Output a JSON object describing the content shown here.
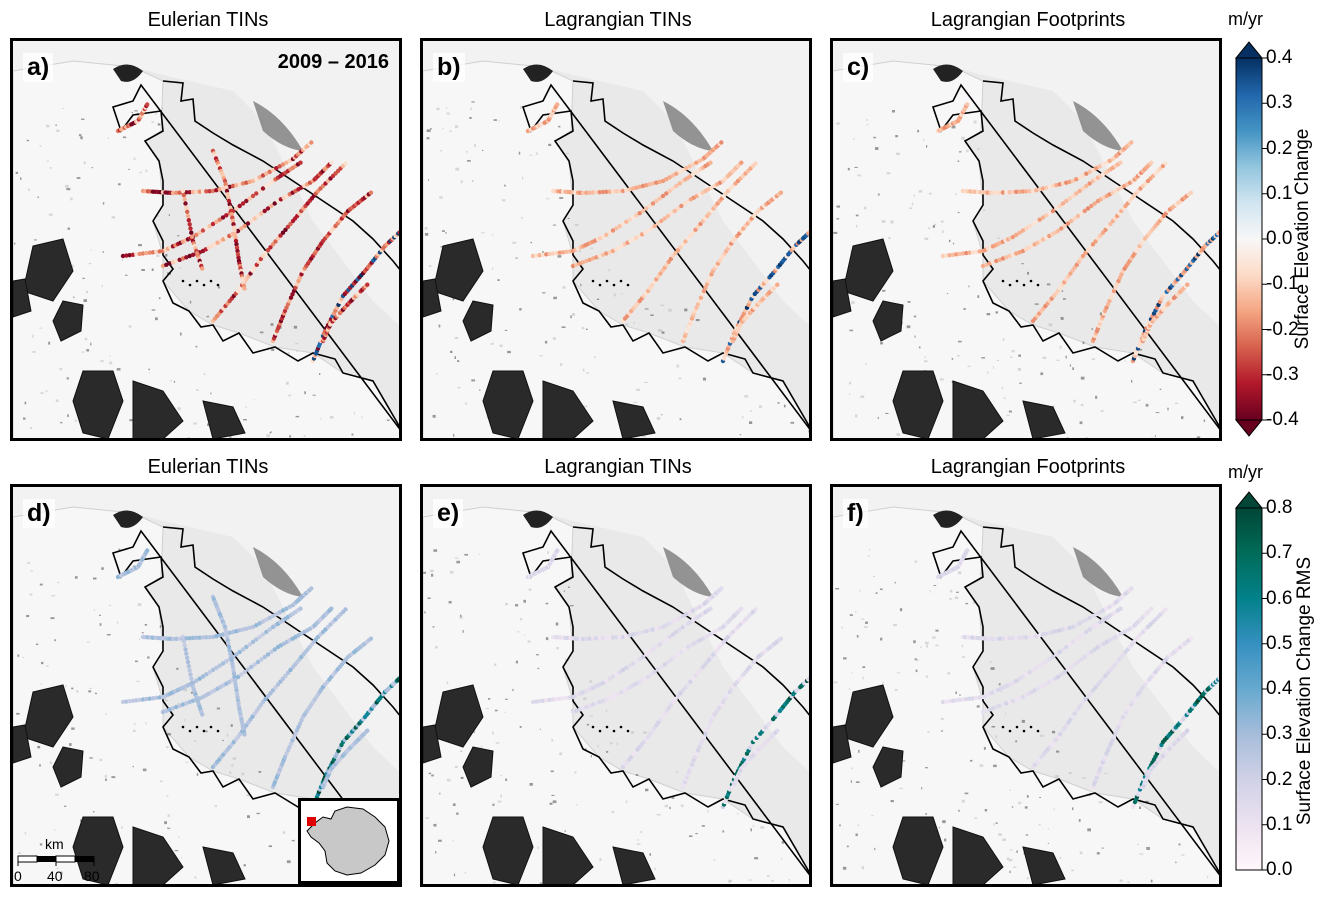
{
  "panels": [
    {
      "letter": "a)",
      "title": "Eulerian TINs",
      "period": "2009 – 2016",
      "metric": "change",
      "method": "eulerian_tins"
    },
    {
      "letter": "b)",
      "title": "Lagrangian TINs",
      "period": "",
      "metric": "change",
      "method": "lagrangian_tins"
    },
    {
      "letter": "c)",
      "title": "Lagrangian Footprints",
      "period": "",
      "metric": "change",
      "method": "lagrangian_footprints"
    },
    {
      "letter": "d)",
      "title": "Eulerian TINs",
      "period": "",
      "metric": "rms",
      "method": "eulerian_tins"
    },
    {
      "letter": "e)",
      "title": "Lagrangian TINs",
      "period": "",
      "metric": "rms",
      "method": "lagrangian_tins"
    },
    {
      "letter": "f)",
      "title": "Lagrangian Footprints",
      "period": "",
      "metric": "rms",
      "method": "lagrangian_footprints"
    }
  ],
  "colorbars": {
    "change": {
      "unit": "m/yr",
      "label": "Surface Elevation Change",
      "ticks": [
        "0.4",
        "0.3",
        "0.2",
        "0.1",
        "0.0",
        "-0.1",
        "-0.2",
        "-0.3",
        "-0.4"
      ],
      "range": [
        -0.4,
        0.4
      ],
      "colors": [
        "#67001f",
        "#b2182b",
        "#d6604d",
        "#f4a582",
        "#fddbc7",
        "#f7f7f7",
        "#d1e5f0",
        "#92c5de",
        "#4393c3",
        "#2166ac",
        "#053061"
      ]
    },
    "rms": {
      "unit": "m/yr",
      "label": "Surface Elevation Change RMS",
      "ticks": [
        "0.8",
        "0.7",
        "0.6",
        "0.5",
        "0.4",
        "0.3",
        "0.2",
        "0.1",
        "0.0"
      ],
      "range": [
        0.0,
        0.8
      ],
      "colors": [
        "#fff7fb",
        "#ece2f0",
        "#d0d1e6",
        "#a6bddb",
        "#67a9cf",
        "#3690c0",
        "#02818a",
        "#016c59",
        "#014636"
      ]
    }
  },
  "scalebar": {
    "unit": "km",
    "ticks": [
      "0",
      "40",
      "80"
    ]
  },
  "chart_data": {
    "type": "map",
    "title": "",
    "period": "2009 – 2016",
    "panels": [
      {
        "letter": "a)",
        "title": "Eulerian TINs",
        "variable": "Surface Elevation Change",
        "unit": "m/yr",
        "range": [
          -0.4,
          0.4
        ]
      },
      {
        "letter": "b)",
        "title": "Lagrangian TINs",
        "variable": "Surface Elevation Change",
        "unit": "m/yr",
        "range": [
          -0.4,
          0.4
        ]
      },
      {
        "letter": "c)",
        "title": "Lagrangian Footprints",
        "variable": "Surface Elevation Change",
        "unit": "m/yr",
        "range": [
          -0.4,
          0.4
        ]
      },
      {
        "letter": "d)",
        "title": "Eulerian TINs",
        "variable": "Surface Elevation Change RMS",
        "unit": "m/yr",
        "range": [
          0.0,
          0.8
        ]
      },
      {
        "letter": "e)",
        "title": "Lagrangian TINs",
        "variable": "Surface Elevation Change RMS",
        "unit": "m/yr",
        "range": [
          0.0,
          0.8
        ]
      },
      {
        "letter": "f)",
        "title": "Lagrangian Footprints",
        "variable": "Surface Elevation Change RMS",
        "unit": "m/yr",
        "range": [
          0.0,
          0.8
        ]
      }
    ]
  }
}
